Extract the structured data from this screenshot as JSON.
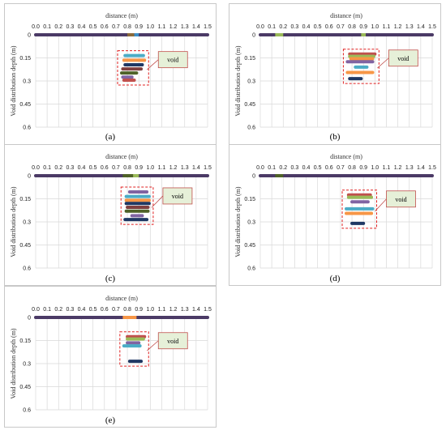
{
  "axis": {
    "xlabel": "distance (m)",
    "ylabel": "Void distribution depth (m)",
    "xticks": [
      "0.0",
      "0.1",
      "0.2",
      "0.3",
      "0.4",
      "0.5",
      "0.6",
      "0.7",
      "0.8",
      "0.9",
      "1.0",
      "1.1",
      "1.2",
      "1.3",
      "1.4",
      "1.5"
    ],
    "yticks": [
      "0",
      "0.15",
      "0.3",
      "0.45",
      "0.6"
    ],
    "xlim": [
      0,
      1.5
    ],
    "ylim": [
      0,
      0.6
    ]
  },
  "annotation_label": "void",
  "colors": {
    "base_bar": "#4b3a66",
    "callout_fill": "#e6f0d8",
    "callout_border": "#c0504d",
    "dashed_box": "#e02020",
    "grid": "#d9d9d9"
  },
  "chart_data": [
    {
      "type": "bar",
      "panel_label": "(a)",
      "surface": {
        "y": 0,
        "x": [
          0.0,
          1.5
        ]
      },
      "surface_marks": [
        {
          "x": [
            0.8,
            0.86
          ],
          "color": "#8b6a3a"
        },
        {
          "x": [
            0.86,
            0.9
          ],
          "color": "#3c8fc7"
        }
      ],
      "series": [
        {
          "y": 0.135,
          "x": [
            0.78,
            0.94
          ],
          "color": "#4bacc6"
        },
        {
          "y": 0.165,
          "x": [
            0.77,
            0.95
          ],
          "color": "#f79646"
        },
        {
          "y": 0.195,
          "x": [
            0.78,
            0.93
          ],
          "color": "#1f3864"
        },
        {
          "y": 0.222,
          "x": [
            0.76,
            0.92
          ],
          "color": "#7f3f3f"
        },
        {
          "y": 0.248,
          "x": [
            0.75,
            0.88
          ],
          "color": "#4f6228"
        },
        {
          "y": 0.275,
          "x": [
            0.76,
            0.84
          ],
          "color": "#8064a2"
        },
        {
          "y": 0.295,
          "x": [
            0.77,
            0.86
          ],
          "color": "#c0504d"
        }
      ]
    },
    {
      "type": "bar",
      "panel_label": "(b)",
      "surface": {
        "y": 0,
        "x": [
          0.0,
          1.5
        ]
      },
      "surface_marks": [
        {
          "x": [
            0.13,
            0.2
          ],
          "color": "#9bbb59"
        },
        {
          "x": [
            0.88,
            0.92
          ],
          "color": "#9bbb59"
        }
      ],
      "series": [
        {
          "y": 0.125,
          "x": [
            0.78,
            1.0
          ],
          "color": "#c0504d"
        },
        {
          "y": 0.14,
          "x": [
            0.78,
            0.99
          ],
          "color": "#9bbb59"
        },
        {
          "y": 0.155,
          "x": [
            0.79,
            0.98
          ],
          "color": "#f79646"
        },
        {
          "y": 0.175,
          "x": [
            0.76,
            0.98
          ],
          "color": "#8064a2"
        },
        {
          "y": 0.21,
          "x": [
            0.83,
            0.93
          ],
          "color": "#4bacc6"
        },
        {
          "y": 0.245,
          "x": [
            0.76,
            0.98
          ],
          "color": "#f79646"
        },
        {
          "y": 0.285,
          "x": [
            0.78,
            0.88
          ],
          "color": "#1f3864"
        }
      ]
    },
    {
      "type": "bar",
      "panel_label": "(c)",
      "surface": {
        "y": 0,
        "x": [
          0.0,
          1.5
        ]
      },
      "surface_marks": [
        {
          "x": [
            0.76,
            0.9
          ],
          "color": "#4f6228"
        },
        {
          "x": [
            0.85,
            0.9
          ],
          "color": "#9bbb59"
        }
      ],
      "series": [
        {
          "y": 0.105,
          "x": [
            0.82,
            0.97
          ],
          "color": "#8064a2"
        },
        {
          "y": 0.135,
          "x": [
            0.79,
            0.99
          ],
          "color": "#4bacc6"
        },
        {
          "y": 0.16,
          "x": [
            0.79,
            0.99
          ],
          "color": "#f79646"
        },
        {
          "y": 0.18,
          "x": [
            0.79,
            0.99
          ],
          "color": "#1f3864"
        },
        {
          "y": 0.205,
          "x": [
            0.8,
            0.98
          ],
          "color": "#7f3f3f"
        },
        {
          "y": 0.23,
          "x": [
            0.79,
            0.98
          ],
          "color": "#4f6228"
        },
        {
          "y": 0.26,
          "x": [
            0.84,
            0.93
          ],
          "color": "#8064a2"
        },
        {
          "y": 0.285,
          "x": [
            0.78,
            0.97
          ],
          "color": "#1f3864"
        }
      ]
    },
    {
      "type": "bar",
      "panel_label": "(d)",
      "surface": {
        "y": 0,
        "x": [
          0.0,
          1.5
        ]
      },
      "surface_marks": [
        {
          "x": [
            0.13,
            0.2
          ],
          "color": "#4f6228"
        }
      ],
      "series": [
        {
          "y": 0.125,
          "x": [
            0.77,
            0.96
          ],
          "color": "#c0504d"
        },
        {
          "y": 0.14,
          "x": [
            0.77,
            0.97
          ],
          "color": "#9bbb59"
        },
        {
          "y": 0.17,
          "x": [
            0.8,
            0.94
          ],
          "color": "#8064a2"
        },
        {
          "y": 0.215,
          "x": [
            0.75,
            0.98
          ],
          "color": "#4bacc6"
        },
        {
          "y": 0.245,
          "x": [
            0.75,
            0.97
          ],
          "color": "#f79646"
        },
        {
          "y": 0.31,
          "x": [
            0.8,
            0.9
          ],
          "color": "#1f3864"
        }
      ]
    },
    {
      "type": "bar",
      "panel_label": "(e)",
      "surface": {
        "y": 0,
        "x": [
          0.0,
          1.5
        ]
      },
      "surface_marks": [
        {
          "x": [
            0.76,
            0.88
          ],
          "color": "#f79646"
        }
      ],
      "series": [
        {
          "y": 0.125,
          "x": [
            0.8,
            0.95
          ],
          "color": "#c0504d"
        },
        {
          "y": 0.14,
          "x": [
            0.8,
            0.94
          ],
          "color": "#9bbb59"
        },
        {
          "y": 0.165,
          "x": [
            0.8,
            0.9
          ],
          "color": "#8064a2"
        },
        {
          "y": 0.185,
          "x": [
            0.77,
            0.91
          ],
          "color": "#4bacc6"
        },
        {
          "y": 0.285,
          "x": [
            0.82,
            0.92
          ],
          "color": "#1f3864"
        }
      ]
    }
  ]
}
